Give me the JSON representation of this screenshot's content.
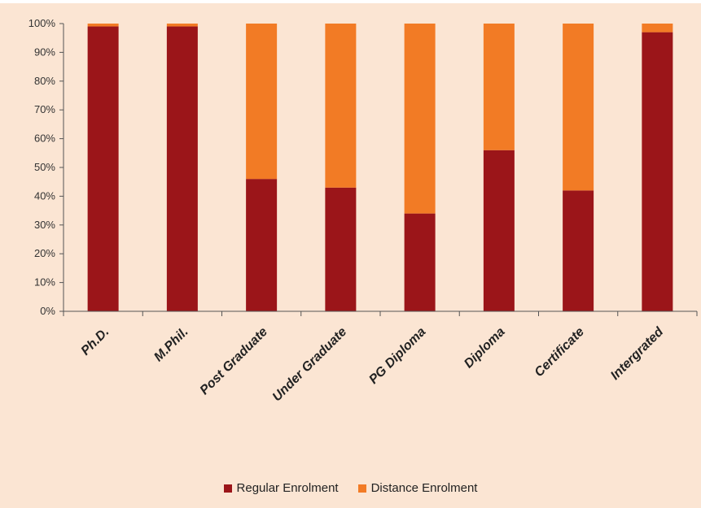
{
  "chart_data": {
    "type": "bar",
    "stacked": true,
    "percent": true,
    "categories": [
      "Ph.D.",
      "M.Phil.",
      "Post Graduate",
      "Under Graduate",
      "PG Diploma",
      "Diploma",
      "Certificate",
      "Intergrated"
    ],
    "series": [
      {
        "name": "Regular Enrolment",
        "color": "#9b1519",
        "values": [
          99,
          99,
          46,
          43,
          34,
          56,
          42,
          97
        ]
      },
      {
        "name": "Distance Enrolment",
        "color": "#f27b25",
        "values": [
          1,
          1,
          54,
          57,
          66,
          44,
          58,
          3
        ]
      }
    ],
    "yticks": [
      "0%",
      "10%",
      "20%",
      "30%",
      "40%",
      "50%",
      "60%",
      "70%",
      "80%",
      "90%",
      "100%"
    ],
    "ylim": [
      0,
      100
    ],
    "grid": false,
    "legend_position": "bottom"
  }
}
